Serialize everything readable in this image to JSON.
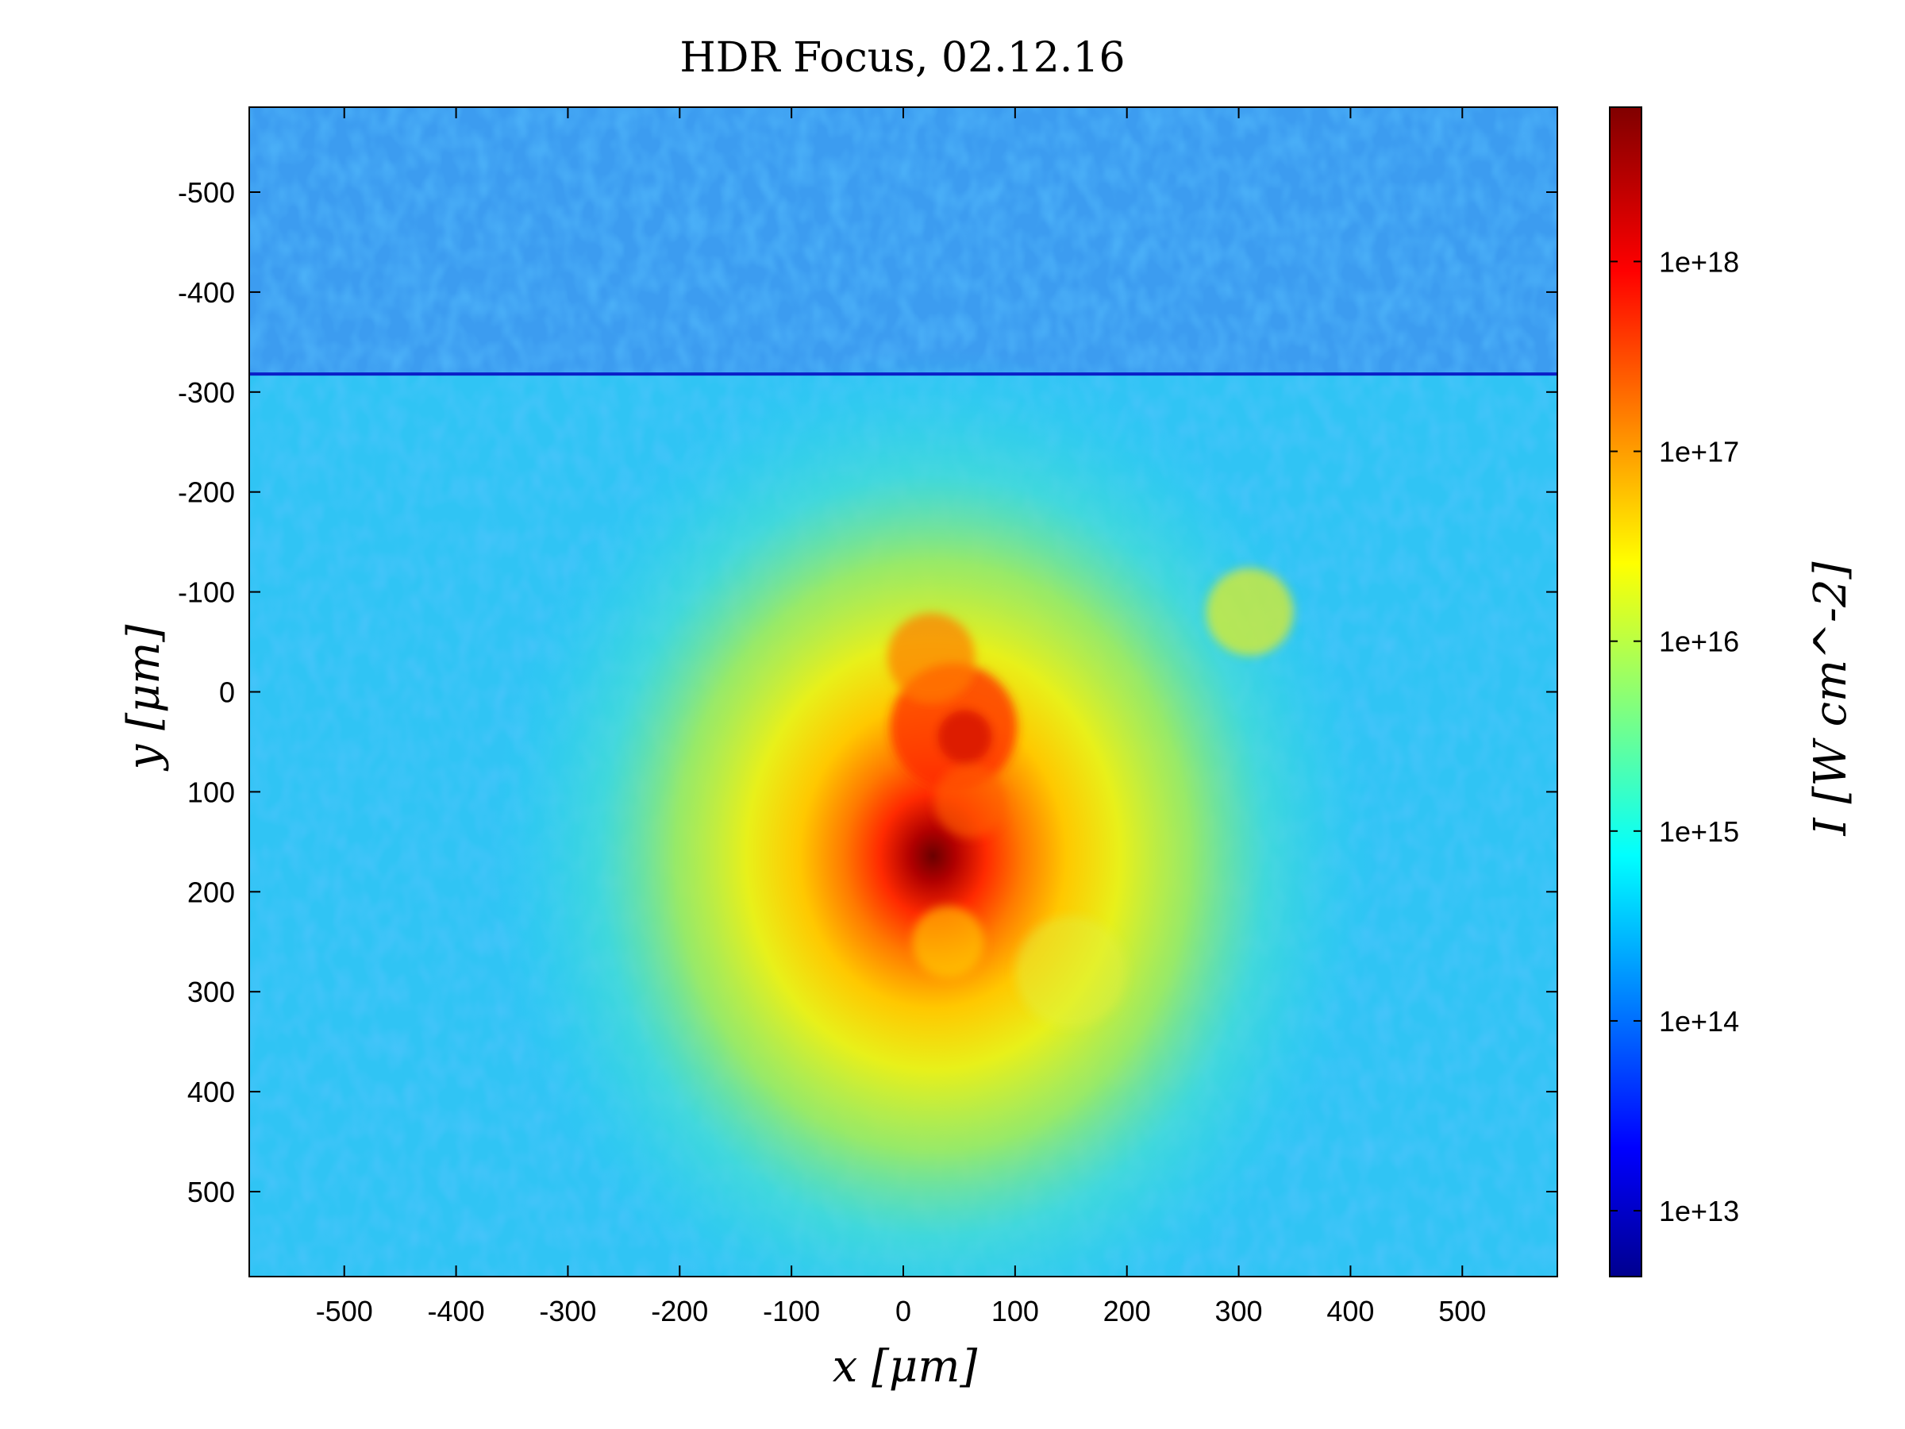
{
  "chart_data": {
    "type": "heatmap",
    "title": "HDR Focus, 02.12.16",
    "xlabel": "x [μm]",
    "ylabel": "y [μm]",
    "xlim": [
      -585,
      585
    ],
    "ylim": [
      -585,
      585
    ],
    "y_axis_inverted": true,
    "x_ticks": [
      -500,
      -400,
      -300,
      -200,
      -100,
      0,
      100,
      200,
      300,
      400,
      500
    ],
    "y_ticks": [
      -500,
      -400,
      -300,
      -200,
      -100,
      0,
      100,
      200,
      300,
      400,
      500
    ],
    "colormap": "jet",
    "colorbar": {
      "label": "I [W cm^-2]",
      "scale": "log",
      "range": [
        4500000000000.0,
        6.5e+18
      ],
      "ticks": [
        {
          "value": 10000000000000.0,
          "label": "1e+13"
        },
        {
          "value": 100000000000000.0,
          "label": "1e+14"
        },
        {
          "value": 1000000000000000.0,
          "label": "1e+15"
        },
        {
          "value": 1e+16,
          "label": "1e+16"
        },
        {
          "value": 1e+17,
          "label": "1e+17"
        },
        {
          "value": 1e+18,
          "label": "1e+18"
        }
      ]
    },
    "features": {
      "peak": {
        "x": 55,
        "y": 45,
        "intensity": 6e+18
      },
      "stitch_line_y": -318,
      "background_intensity_above_line": 150000000000000.0,
      "background_intensity_below_line": 800000000000000.0
    }
  }
}
